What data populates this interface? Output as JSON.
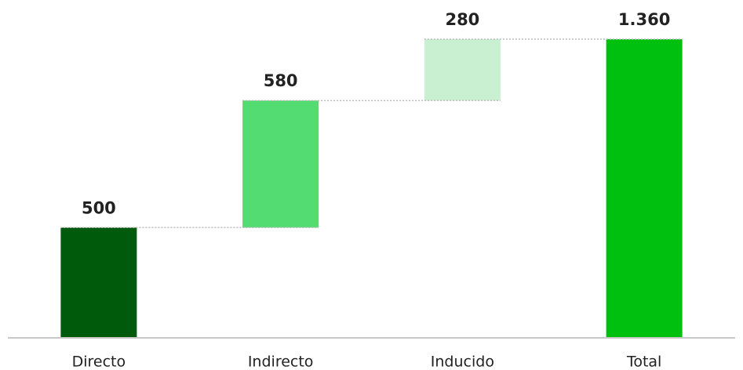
{
  "chart_data": {
    "type": "waterfall",
    "categories": [
      "Directo",
      "Indirecto",
      "Inducido",
      "Total"
    ],
    "values": [
      500,
      580,
      280,
      1360
    ],
    "value_labels": [
      "500",
      "580",
      "280",
      "1.360"
    ],
    "is_total": [
      false,
      false,
      false,
      true
    ],
    "colors": [
      "#005a0c",
      "#52dc72",
      "#c9f1d1",
      "#00c00f"
    ]
  }
}
